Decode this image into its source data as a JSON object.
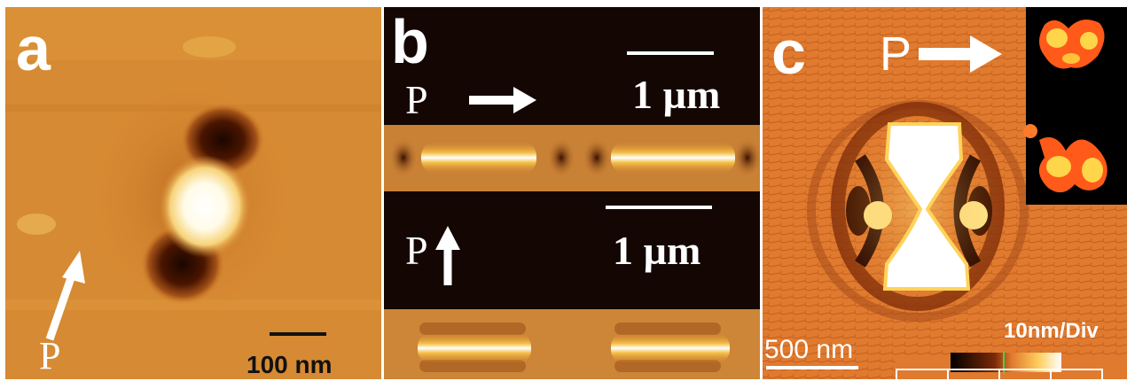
{
  "panels": {
    "a": {
      "label": "a",
      "polarization_label": "P",
      "scale_bar_text": "100 nm"
    },
    "b": {
      "label": "b",
      "top": {
        "polarization_label": "P",
        "scale_bar_text": "1 µm",
        "arrow_direction": "right"
      },
      "bottom": {
        "polarization_label": "P",
        "scale_bar_text": "1 µm",
        "arrow_direction": "up"
      }
    },
    "c": {
      "label": "c",
      "polarization_label": "P",
      "scale_bar_text": "500 nm",
      "colorbar_label": "10nm/Div"
    }
  },
  "colors": {
    "afm_dark": "#3a0f00",
    "afm_mid": "#d98a2e",
    "afm_light": "#ffffff",
    "inset_bg": "#000000"
  }
}
